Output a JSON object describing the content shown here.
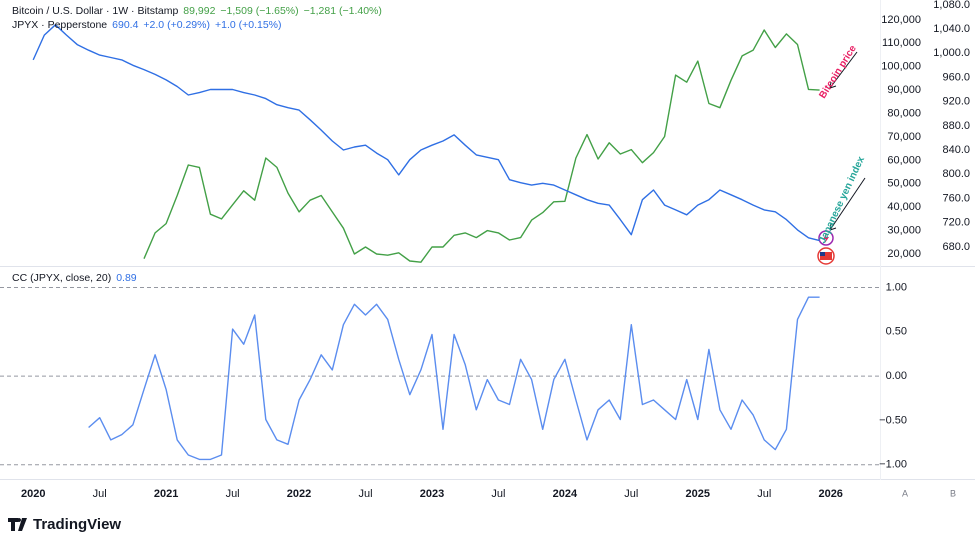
{
  "chart_data": [
    {
      "type": "line",
      "x": [
        "2020-01",
        "2020-02",
        "2020-03",
        "2020-04",
        "2020-05",
        "2020-06",
        "2020-07",
        "2020-08",
        "2020-09",
        "2020-10",
        "2020-11",
        "2020-12",
        "2021-01",
        "2021-02",
        "2021-03",
        "2021-04",
        "2021-05",
        "2021-06",
        "2021-07",
        "2021-08",
        "2021-09",
        "2021-10",
        "2021-11",
        "2021-12",
        "2022-01",
        "2022-02",
        "2022-03",
        "2022-04",
        "2022-05",
        "2022-06",
        "2022-07",
        "2022-08",
        "2022-09",
        "2022-10",
        "2022-11",
        "2022-12",
        "2023-01",
        "2023-02",
        "2023-03",
        "2023-04",
        "2023-05",
        "2023-06",
        "2023-07",
        "2023-08",
        "2023-09",
        "2023-10",
        "2023-11",
        "2023-12",
        "2024-01",
        "2024-02",
        "2024-03",
        "2024-04",
        "2024-05",
        "2024-06",
        "2024-07",
        "2024-08",
        "2024-09",
        "2024-10",
        "2024-11",
        "2024-12",
        "2025-01",
        "2025-02",
        "2025-03",
        "2025-04",
        "2025-05",
        "2025-06",
        "2025-07",
        "2025-08",
        "2025-09",
        "2025-10",
        "2025-11",
        "2025-12"
      ],
      "xlim": [
        "2019-10",
        "2026-05"
      ],
      "series": [
        {
          "name": "Bitcoin / U.S. Dollar · 1W · Bitstamp",
          "color": "#43a047",
          "axis": "y",
          "last_label": "89,992",
          "changes": [
            "−1,509 (−1.65%)",
            "−1,281 (−1.40%)"
          ],
          "values": [
            null,
            null,
            null,
            null,
            null,
            null,
            null,
            null,
            null,
            null,
            18000,
            29000,
            33000,
            45000,
            58000,
            57000,
            37000,
            35000,
            41000,
            47000,
            43000,
            61000,
            57000,
            46000,
            38000,
            43000,
            45000,
            38000,
            31000,
            20000,
            23000,
            20000,
            19500,
            20500,
            17000,
            16500,
            23000,
            23000,
            28000,
            29000,
            27000,
            30000,
            29000,
            26000,
            27000,
            34500,
            37700,
            42300,
            42500,
            61000,
            71000,
            60600,
            67500,
            62700,
            64600,
            59000,
            63300,
            70200,
            96400,
            93400,
            102400,
            84300,
            82500,
            94200,
            104600,
            107100,
            115700,
            108200,
            114000,
            109500,
            90300,
            89992
          ]
        },
        {
          "name": "JPYX · Pepperstone",
          "color": "#2f6fe4",
          "axis": "y2",
          "last_label": "690.4",
          "changes": [
            "+2.0 (+0.29%)",
            "+1.0 (+0.15%)"
          ],
          "values": [
            989,
            1030,
            1047,
            1030,
            1014,
            1005,
            997,
            993,
            989,
            980,
            973,
            965,
            956,
            945,
            931,
            935,
            940,
            940,
            940,
            935,
            931,
            925,
            915,
            910,
            906,
            890,
            873,
            855,
            840,
            845,
            848,
            835,
            824,
            799,
            824,
            840,
            848,
            855,
            865,
            848,
            832,
            828,
            824,
            791,
            786,
            782,
            785,
            782,
            774,
            766,
            758,
            752,
            749,
            725,
            700,
            758,
            774,
            749,
            741,
            733,
            749,
            758,
            774,
            766,
            758,
            749,
            741,
            738,
            725,
            708,
            695,
            690.4
          ]
        }
      ],
      "ylim": [
        15300,
        128500
      ],
      "yticks": [
        {
          "value": 20000,
          "label": "20,000"
        },
        {
          "value": 30000,
          "label": "30,000"
        },
        {
          "value": 40000,
          "label": "40,000"
        },
        {
          "value": 50000,
          "label": "50,000"
        },
        {
          "value": 60000,
          "label": "60,000"
        },
        {
          "value": 70000,
          "label": "70,000"
        },
        {
          "value": 80000,
          "label": "80,000"
        },
        {
          "value": 90000,
          "label": "90,000"
        },
        {
          "value": 100000,
          "label": "100,000"
        },
        {
          "value": 110000,
          "label": "110,000"
        },
        {
          "value": 120000,
          "label": "120,000"
        }
      ],
      "y2lim": [
        650,
        1088
      ],
      "y2ticks": [
        {
          "value": 680,
          "label": "680.0"
        },
        {
          "value": 720,
          "label": "720.0"
        },
        {
          "value": 760,
          "label": "760.0"
        },
        {
          "value": 800,
          "label": "800.0"
        },
        {
          "value": 840,
          "label": "840.0"
        },
        {
          "value": 880,
          "label": "880.0"
        },
        {
          "value": 920,
          "label": "920.0"
        },
        {
          "value": 960,
          "label": "960.0"
        },
        {
          "value": 1000,
          "label": "1,000.0"
        },
        {
          "value": 1040,
          "label": "1,040.0"
        },
        {
          "value": 1080,
          "label": "1,080.0"
        }
      ],
      "annotations": [
        {
          "text": "Bitcoin price",
          "color": "#e91e63"
        },
        {
          "text": "Japanese yen index",
          "color": "#26a69a"
        }
      ]
    },
    {
      "type": "line",
      "x": [
        "2020-01",
        "2020-02",
        "2020-03",
        "2020-04",
        "2020-05",
        "2020-06",
        "2020-07",
        "2020-08",
        "2020-09",
        "2020-10",
        "2020-11",
        "2020-12",
        "2021-01",
        "2021-02",
        "2021-03",
        "2021-04",
        "2021-05",
        "2021-06",
        "2021-07",
        "2021-08",
        "2021-09",
        "2021-10",
        "2021-11",
        "2021-12",
        "2022-01",
        "2022-02",
        "2022-03",
        "2022-04",
        "2022-05",
        "2022-06",
        "2022-07",
        "2022-08",
        "2022-09",
        "2022-10",
        "2022-11",
        "2022-12",
        "2023-01",
        "2023-02",
        "2023-03",
        "2023-04",
        "2023-05",
        "2023-06",
        "2023-07",
        "2023-08",
        "2023-09",
        "2023-10",
        "2023-11",
        "2023-12",
        "2024-01",
        "2024-02",
        "2024-03",
        "2024-04",
        "2024-05",
        "2024-06",
        "2024-07",
        "2024-08",
        "2024-09",
        "2024-10",
        "2024-11",
        "2024-12",
        "2025-01",
        "2025-02",
        "2025-03",
        "2025-04",
        "2025-05",
        "2025-06",
        "2025-07",
        "2025-08",
        "2025-09",
        "2025-10",
        "2025-11",
        "2025-12"
      ],
      "xlim": [
        "2019-10",
        "2026-05"
      ],
      "xticks": [
        {
          "value": "2020-01",
          "label": "2020"
        },
        {
          "value": "2020-07",
          "label": "Jul"
        },
        {
          "value": "2021-01",
          "label": "2021"
        },
        {
          "value": "2021-07",
          "label": "Jul"
        },
        {
          "value": "2022-01",
          "label": "2022"
        },
        {
          "value": "2022-07",
          "label": "Jul"
        },
        {
          "value": "2023-01",
          "label": "2023"
        },
        {
          "value": "2023-07",
          "label": "Jul"
        },
        {
          "value": "2024-01",
          "label": "2024"
        },
        {
          "value": "2024-07",
          "label": "Jul"
        },
        {
          "value": "2025-01",
          "label": "2025"
        },
        {
          "value": "2025-07",
          "label": "Jul"
        },
        {
          "value": "2026-01",
          "label": "2026"
        }
      ],
      "series": [
        {
          "name": "CC (JPYX, close, 20)",
          "color": "#5b8def",
          "axis": "y",
          "last_label": "0.89",
          "values": [
            null,
            null,
            null,
            null,
            null,
            -0.58,
            -0.47,
            -0.72,
            -0.66,
            -0.55,
            -0.15,
            0.24,
            -0.15,
            -0.72,
            -0.89,
            -0.94,
            -0.94,
            -0.89,
            0.53,
            0.36,
            0.69,
            -0.49,
            -0.72,
            -0.77,
            -0.27,
            -0.04,
            0.24,
            0.07,
            0.58,
            0.81,
            0.69,
            0.81,
            0.64,
            0.19,
            -0.21,
            0.07,
            0.47,
            -0.6,
            0.47,
            0.13,
            -0.38,
            -0.04,
            -0.27,
            -0.32,
            0.19,
            -0.04,
            -0.6,
            -0.04,
            0.19,
            -0.27,
            -0.72,
            -0.38,
            -0.27,
            -0.49,
            0.58,
            -0.32,
            -0.27,
            -0.38,
            -0.49,
            -0.04,
            -0.49,
            0.3,
            -0.38,
            -0.6,
            -0.27,
            -0.44,
            -0.72,
            -0.83,
            -0.6,
            0.64,
            0.89,
            0.89
          ]
        }
      ],
      "ylim": [
        -1.15,
        1.22
      ],
      "yticks": [
        {
          "value": 1,
          "label": "1.00"
        },
        {
          "value": 0.5,
          "label": "0.50"
        },
        {
          "value": 0,
          "label": "0.00"
        },
        {
          "value": -0.5,
          "label": "−0.50"
        },
        {
          "value": -1,
          "label": "−1.00"
        }
      ],
      "hlines": [
        1,
        0,
        -1
      ]
    }
  ],
  "pane_buttons": [
    "A",
    "B"
  ],
  "brand": "TradingView"
}
